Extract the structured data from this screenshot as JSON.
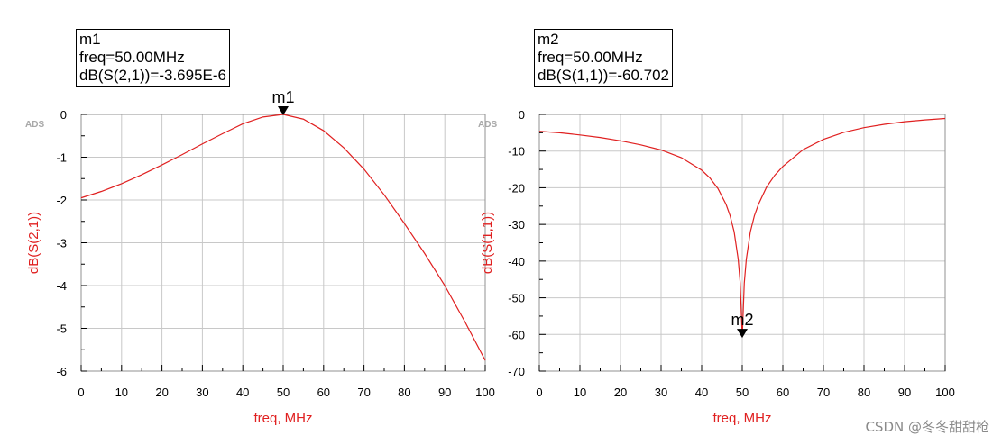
{
  "chart_data": [
    {
      "type": "line",
      "id": "left",
      "xlabel": "freq, MHz",
      "ylabel": "dB(S(2,1))",
      "xlim": [
        0,
        100
      ],
      "ylim": [
        -6,
        0
      ],
      "xticks": [
        0,
        10,
        20,
        30,
        40,
        50,
        60,
        70,
        80,
        90,
        100
      ],
      "yticks": [
        0,
        -1,
        -2,
        -3,
        -4,
        -5,
        -6
      ],
      "grid": true,
      "ads_label": "ADS",
      "line_color": "#e02020",
      "series": [
        {
          "x": [
            0,
            5,
            10,
            15,
            20,
            25,
            30,
            35,
            40,
            45,
            50,
            55,
            60,
            65,
            70,
            75,
            80,
            85,
            90,
            95,
            100
          ],
          "values": [
            -1.95,
            -1.8,
            -1.62,
            -1.41,
            -1.18,
            -0.94,
            -0.69,
            -0.45,
            -0.22,
            -0.06,
            0.0,
            -0.11,
            -0.38,
            -0.78,
            -1.28,
            -1.88,
            -2.55,
            -3.25,
            -4.0,
            -4.85,
            -5.75
          ]
        }
      ],
      "marker": {
        "name": "m1",
        "x": 50,
        "y": 0,
        "box_lines": [
          "m1",
          "freq=50.00MHz",
          "dB(S(2,1))=-3.695E-6"
        ]
      }
    },
    {
      "type": "line",
      "id": "right",
      "xlabel": "freq, MHz",
      "ylabel": "dB(S(1,1))",
      "xlim": [
        0,
        100
      ],
      "ylim": [
        -70,
        0
      ],
      "xticks": [
        0,
        10,
        20,
        30,
        40,
        50,
        60,
        70,
        80,
        90,
        100
      ],
      "yticks": [
        0,
        -10,
        -20,
        -30,
        -40,
        -50,
        -60,
        -70
      ],
      "grid": true,
      "ads_label": "ADS",
      "line_color": "#e02020",
      "series": [
        {
          "x": [
            0,
            5,
            10,
            15,
            20,
            25,
            30,
            35,
            40,
            42,
            44,
            46,
            47,
            48,
            49,
            49.5,
            50,
            50.5,
            51,
            52,
            53,
            54,
            56,
            58,
            60,
            65,
            70,
            75,
            80,
            85,
            90,
            95,
            100
          ],
          "values": [
            -4.6,
            -5.0,
            -5.6,
            -6.3,
            -7.2,
            -8.3,
            -9.7,
            -11.8,
            -15.2,
            -17.3,
            -20.2,
            -24.5,
            -27.6,
            -32.0,
            -39.5,
            -46.0,
            -60.7,
            -46.0,
            -39.5,
            -32.0,
            -27.6,
            -24.5,
            -19.8,
            -16.6,
            -14.2,
            -9.6,
            -6.8,
            -4.9,
            -3.6,
            -2.7,
            -2.0,
            -1.5,
            -1.1
          ]
        }
      ],
      "marker": {
        "name": "m2",
        "x": 50,
        "y": -60.702,
        "box_lines": [
          "m2",
          "freq=50.00MHz",
          "dB(S(1,1))=-60.702"
        ]
      }
    }
  ],
  "watermark": "CSDN @冬冬甜甜枪"
}
